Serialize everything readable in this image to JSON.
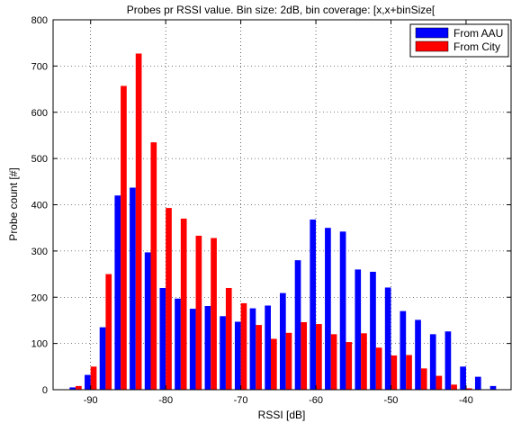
{
  "chart_data": {
    "type": "bar",
    "title": "Probes pr RSSI value. Bin size: 2dB, bin coverage: [x,x+binSize[",
    "xlabel": "RSSI [dB]",
    "ylabel": "Probe count [#]",
    "xlim": [
      -95,
      -34
    ],
    "ylim": [
      0,
      800
    ],
    "xticks": [
      -90,
      -80,
      -70,
      -60,
      -50,
      -40
    ],
    "yticks": [
      0,
      100,
      200,
      300,
      400,
      500,
      600,
      700,
      800
    ],
    "grid": true,
    "legend_position": "top-right",
    "bin_size": 2,
    "x": [
      -94,
      -92,
      -90,
      -88,
      -86,
      -84,
      -82,
      -80,
      -78,
      -76,
      -74,
      -72,
      -70,
      -68,
      -66,
      -64,
      -62,
      -60,
      -58,
      -56,
      -54,
      -52,
      -50,
      -48,
      -46,
      -44,
      -42,
      -40,
      -38,
      -36,
      -34
    ],
    "series": [
      {
        "name": "From AAU",
        "color": "#0000ff",
        "values": [
          1,
          5,
          32,
          135,
          420,
          437,
          297,
          220,
          197,
          175,
          181,
          159,
          147,
          176,
          182,
          209,
          280,
          368,
          350,
          342,
          260,
          255,
          221,
          170,
          151,
          120,
          126,
          50,
          28,
          8,
          1
        ]
      },
      {
        "name": "From City",
        "color": "#ff0000",
        "values": [
          1,
          8,
          50,
          250,
          657,
          727,
          535,
          393,
          370,
          333,
          328,
          220,
          187,
          140,
          110,
          123,
          146,
          142,
          120,
          103,
          122,
          91,
          74,
          75,
          46,
          30,
          11,
          3,
          1,
          0,
          0
        ]
      }
    ]
  }
}
